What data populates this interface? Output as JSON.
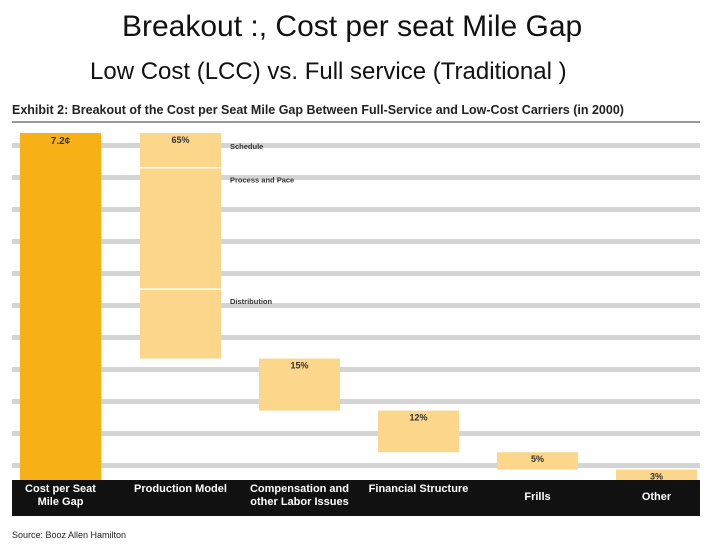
{
  "title": "Breakout :, Cost per seat Mile Gap",
  "subtitle": "Low Cost (LCC) vs. Full service (Traditional )",
  "chart_data": {
    "type": "waterfall",
    "title": "Exhibit 2: Breakout of the Cost per Seat Mile Gap Between Full-Service and Low-Cost Carriers (in 2000)",
    "total_category": "Cost per Seat Mile Gap",
    "total": 7.2,
    "total_label": "7.2¢",
    "categories": [
      "Production Model",
      "Compensation and other Labor Issues",
      "Financial Structure",
      "Frills",
      "Other"
    ],
    "values": [
      65,
      15,
      12,
      5,
      3
    ],
    "value_labels": [
      "65%",
      "15%",
      "12%",
      "5%",
      "3%"
    ],
    "segments": [
      {
        "name": "Schedule",
        "value": 10
      },
      {
        "name": "Process and Pace",
        "value": 35
      },
      {
        "name": "Distribution",
        "value": 20
      }
    ],
    "total_color": "#f7b116",
    "color": "#fcd68a",
    "source": "Source: Booz Allen Hamilton"
  }
}
